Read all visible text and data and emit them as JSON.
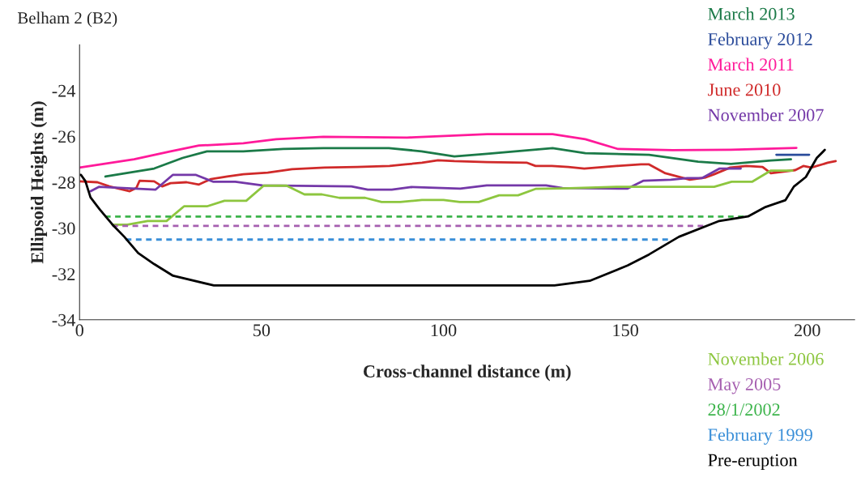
{
  "chart_data": {
    "type": "line",
    "title": "Belham 2 (B2)",
    "xlabel": "Cross-channel distance (m)",
    "ylabel": "Ellipsoid Heights (m)",
    "xlim": [
      0,
      213
    ],
    "ylim": [
      -34,
      -22
    ],
    "xticks": [
      0,
      50,
      100,
      150,
      200
    ],
    "yticks": [
      -34,
      -32,
      -30,
      -28,
      -26,
      -24
    ],
    "grid": false,
    "legend": "right",
    "marker": "none",
    "series": [
      {
        "name": "March 2013",
        "color": "#1b7a48",
        "line_style": "solid",
        "x": [
          7.1,
          20.5,
          28.3,
          35,
          45,
          56,
          67,
          85,
          94,
          103,
          112,
          130,
          139,
          156.5,
          170,
          179,
          190,
          195.5
        ],
        "values": [
          -27.75,
          -27.4,
          -26.94,
          -26.65,
          -26.65,
          -26.55,
          -26.51,
          -26.51,
          -26.65,
          -26.87,
          -26.76,
          -26.51,
          -26.73,
          -26.8,
          -27.1,
          -27.2,
          -27.05,
          -27.0
        ]
      },
      {
        "name": "February 2012",
        "color": "#2b4c9b",
        "line_style": "solid",
        "x": [
          191.5,
          200.5
        ],
        "values": [
          -26.8,
          -26.8
        ]
      },
      {
        "name": "March 2011",
        "color": "#ff1a9a",
        "line_style": "solid",
        "x": [
          0,
          15,
          25,
          32.8,
          45,
          54,
          67,
          90,
          112,
          130,
          139,
          148,
          163,
          179,
          197
        ],
        "values": [
          -27.36,
          -27.0,
          -26.65,
          -26.4,
          -26.3,
          -26.12,
          -26.02,
          -26.05,
          -25.9,
          -25.9,
          -26.12,
          -26.55,
          -26.6,
          -26.58,
          -26.5
        ]
      },
      {
        "name": "June 2010",
        "color": "#d02a2a",
        "line_style": "solid",
        "x": [
          0,
          4.9,
          8.2,
          13.8,
          15.6,
          16.5,
          20.5,
          22.7,
          25,
          29.4,
          32.8,
          36.1,
          40.6,
          45,
          51.7,
          58.4,
          67.3,
          76.3,
          85.2,
          89.6,
          94.1,
          98.5,
          103,
          111.9,
          123,
          125.3,
          129.8,
          134.3,
          138.7,
          147.6,
          154.3,
          156.5,
          161,
          167.7,
          172.1,
          174.4,
          178.8,
          183.3,
          187.7,
          190,
          196.7,
          198.9,
          201.1,
          205.6,
          207.8
        ],
        "values": [
          -27.96,
          -28.0,
          -28.18,
          -28.39,
          -28.25,
          -27.93,
          -27.96,
          -28.18,
          -28.04,
          -28.0,
          -28.1,
          -27.86,
          -27.75,
          -27.65,
          -27.58,
          -27.43,
          -27.36,
          -27.33,
          -27.29,
          -27.22,
          -27.15,
          -27.04,
          -27.08,
          -27.12,
          -27.15,
          -27.29,
          -27.29,
          -27.33,
          -27.4,
          -27.29,
          -27.22,
          -27.22,
          -27.61,
          -27.89,
          -27.79,
          -27.65,
          -27.36,
          -27.29,
          -27.33,
          -27.61,
          -27.47,
          -27.29,
          -27.36,
          -27.15,
          -27.08
        ]
      },
      {
        "name": "November 2007",
        "color": "#7438a8",
        "line_style": "solid",
        "x": [
          3.05,
          5.3,
          20.9,
          25.6,
          32,
          36.8,
          42.8,
          50.2,
          74.7,
          79.2,
          85.8,
          91.2,
          104.6,
          111.9,
          128.2,
          132.7,
          150.5,
          155,
          162.5,
          167,
          171,
          175.9,
          181.7
        ],
        "values": [
          -28.39,
          -28.2,
          -28.32,
          -27.68,
          -27.68,
          -27.98,
          -27.98,
          -28.14,
          -28.18,
          -28.32,
          -28.32,
          -28.21,
          -28.28,
          -28.14,
          -28.14,
          -28.25,
          -28.28,
          -27.93,
          -27.89,
          -27.82,
          -27.82,
          -27.4,
          -27.4
        ]
      },
      {
        "name": "November 2006",
        "color": "#8dc63f",
        "line_style": "solid",
        "x": [
          9.0,
          13.1,
          18.7,
          23.9,
          28.7,
          35.0,
          39.8,
          45.8,
          50.6,
          56.9,
          61.8,
          66.6,
          71.4,
          78.5,
          83.0,
          88.1,
          94.1,
          100.0,
          104.5,
          109.7,
          115.3,
          120.5,
          125.3,
          132.7,
          147.6,
          158.0,
          174.4,
          179.2,
          184.8,
          190.0,
          195.9
        ],
        "values": [
          -29.85,
          -29.85,
          -29.69,
          -29.69,
          -29.05,
          -29.05,
          -28.81,
          -28.81,
          -28.15,
          -28.15,
          -28.53,
          -28.53,
          -28.68,
          -28.68,
          -28.86,
          -28.86,
          -28.77,
          -28.77,
          -28.86,
          -28.86,
          -28.57,
          -28.57,
          -28.29,
          -28.27,
          -28.2,
          -28.2,
          -28.2,
          -27.98,
          -27.98,
          -27.49,
          -27.49
        ]
      },
      {
        "name": "May 2005",
        "color": "#a65fb0",
        "line_style": "dashed",
        "x": [
          9.0,
          171.4
        ],
        "values": [
          -29.9,
          -29.9
        ]
      },
      {
        "name": "28/1/2002",
        "color": "#3cb44b",
        "line_style": "dashed",
        "x": [
          7.0,
          182.5
        ],
        "values": [
          -29.5,
          -29.5
        ]
      },
      {
        "name": "February 1999",
        "color": "#3a8fd8",
        "line_style": "dashed",
        "x": [
          12.7,
          161.7
        ],
        "values": [
          -30.5,
          -30.5
        ]
      },
      {
        "name": "Pre-eruption",
        "color": "#000000",
        "line_style": "solid",
        "x": [
          0,
          0.4,
          1.6,
          3.0,
          5.6,
          9.4,
          12.3,
          16.1,
          20.5,
          25.7,
          36.9,
          130.5,
          140.2,
          150.6,
          156.5,
          164.7,
          175.8,
          183.7,
          188.5,
          194.0,
          196.3,
          199.6,
          202.6,
          204.8
        ],
        "values": [
          -27.68,
          -27.68,
          -27.95,
          -28.66,
          -29.2,
          -29.91,
          -30.38,
          -31.09,
          -31.57,
          -32.08,
          -32.5,
          -32.5,
          -32.3,
          -31.63,
          -31.15,
          -30.38,
          -29.69,
          -29.49,
          -29.08,
          -28.78,
          -28.19,
          -27.77,
          -26.94,
          -26.59
        ]
      }
    ]
  }
}
